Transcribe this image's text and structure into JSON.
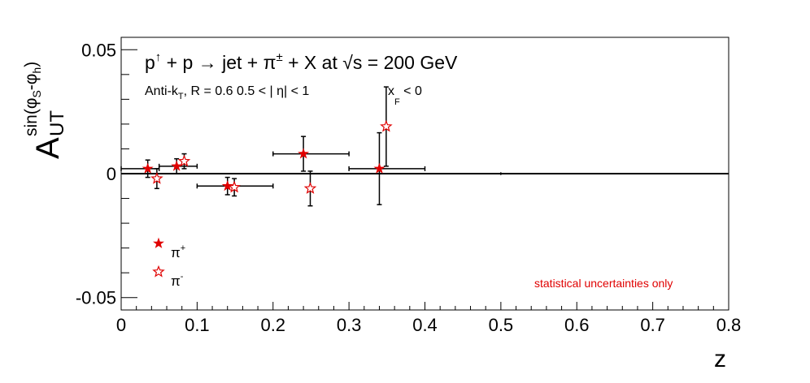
{
  "chart_data": {
    "type": "scatter",
    "title": {
      "p": "p",
      "up_arrow": "↑",
      "plus1": " + p ",
      "arrow": "→",
      "jet": " jet + ",
      "pi": "π",
      "pm": "±",
      "rest": " + X at  ",
      "sqrt": "√",
      "s_rest": "s = 200 GeV"
    },
    "subtitle": {
      "antik": "Anti-k",
      "antik_sub": "T",
      "r": ", R = 0.6   0.5 < | η| < 1",
      "xf": "x",
      "xf_sub": "F",
      "xf_rest": " < 0"
    },
    "ylabel": {
      "A": "A",
      "UT": "UT",
      "sin": "sin(φ",
      "sub_s": "S",
      "mid": "-φ",
      "sub_h": "h",
      "close": ")"
    },
    "xlabel": "z",
    "xlim": [
      0,
      0.8
    ],
    "ylim": [
      -0.055,
      0.055
    ],
    "x_ticks": [
      "0",
      "0.1",
      "0.2",
      "0.3",
      "0.4",
      "0.5",
      "0.6",
      "0.7",
      "0.8"
    ],
    "y_ticks": [
      "-0.05",
      "0",
      "0.05"
    ],
    "series": [
      {
        "name": "π+",
        "marker": "filled-star",
        "color": "#e00000",
        "points": [
          {
            "x": 0.035,
            "y": 0.002,
            "xerr_lo": 0.035,
            "xerr_hi": 0.015,
            "yerr": 0.0035
          },
          {
            "x": 0.073,
            "y": 0.003,
            "xerr_lo": 0.023,
            "xerr_hi": 0.027,
            "yerr": 0.003
          },
          {
            "x": 0.14,
            "y": -0.005,
            "xerr_lo": 0.04,
            "xerr_hi": 0.06,
            "yerr": 0.0035
          },
          {
            "x": 0.24,
            "y": 0.008,
            "xerr_lo": 0.04,
            "xerr_hi": 0.06,
            "yerr": 0.007
          },
          {
            "x": 0.34,
            "y": 0.002,
            "xerr_lo": 0.04,
            "xerr_hi": 0.06,
            "yerr": 0.0145
          }
        ]
      },
      {
        "name": "π−",
        "marker": "open-star",
        "color": "#e00000",
        "points": [
          {
            "x": 0.047,
            "y": -0.002,
            "yerr": 0.004
          },
          {
            "x": 0.083,
            "y": 0.005,
            "yerr": 0.003
          },
          {
            "x": 0.149,
            "y": -0.0055,
            "yerr": 0.0035
          },
          {
            "x": 0.249,
            "y": -0.006,
            "yerr": 0.007
          },
          {
            "x": 0.349,
            "y": 0.019,
            "yerr": 0.016
          }
        ]
      }
    ],
    "legend": {
      "placement": "bottom-left",
      "entries": [
        {
          "pi": "π",
          "sup": "+"
        },
        {
          "pi": "π",
          "sup": "-"
        }
      ]
    },
    "annotation": {
      "text": "statistical uncertainties only",
      "color": "#e00000"
    },
    "reference_line": 0
  }
}
